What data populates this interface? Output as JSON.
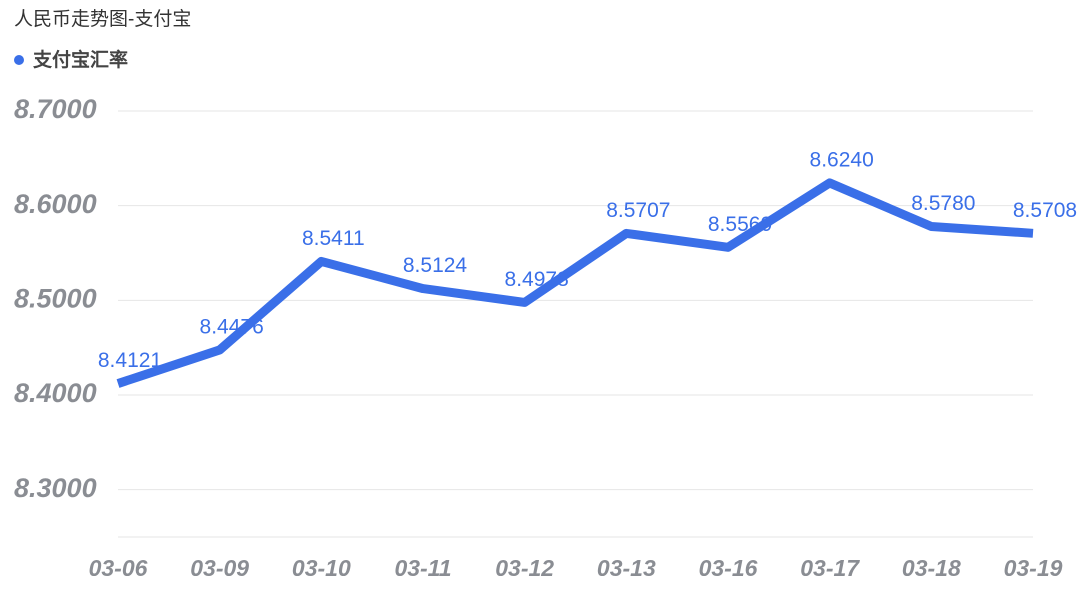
{
  "chart_data": {
    "type": "line",
    "title": "人民币走势图-支付宝",
    "categories": [
      "03-06",
      "03-09",
      "03-10",
      "03-11",
      "03-12",
      "03-13",
      "03-16",
      "03-17",
      "03-18",
      "03-19"
    ],
    "series": [
      {
        "name": "支付宝汇率",
        "color": "#3a6fe8",
        "values": [
          8.4121,
          8.4476,
          8.5411,
          8.5124,
          8.4978,
          8.5707,
          8.556,
          8.624,
          8.578,
          8.5708
        ],
        "value_labels": [
          "8.4121",
          "8.4476",
          "8.5411",
          "8.5124",
          "8.4978",
          "8.5707",
          "8.5560",
          "8.6240",
          "8.5780",
          "8.5708"
        ]
      }
    ],
    "ylim": [
      8.25,
      8.7
    ],
    "yticks": [
      {
        "value": 8.3,
        "label": "8.3000"
      },
      {
        "value": 8.4,
        "label": "8.4000"
      },
      {
        "value": 8.5,
        "label": "8.5000"
      },
      {
        "value": 8.6,
        "label": "8.6000"
      },
      {
        "value": 8.7,
        "label": "8.7000"
      }
    ],
    "grid": true
  }
}
